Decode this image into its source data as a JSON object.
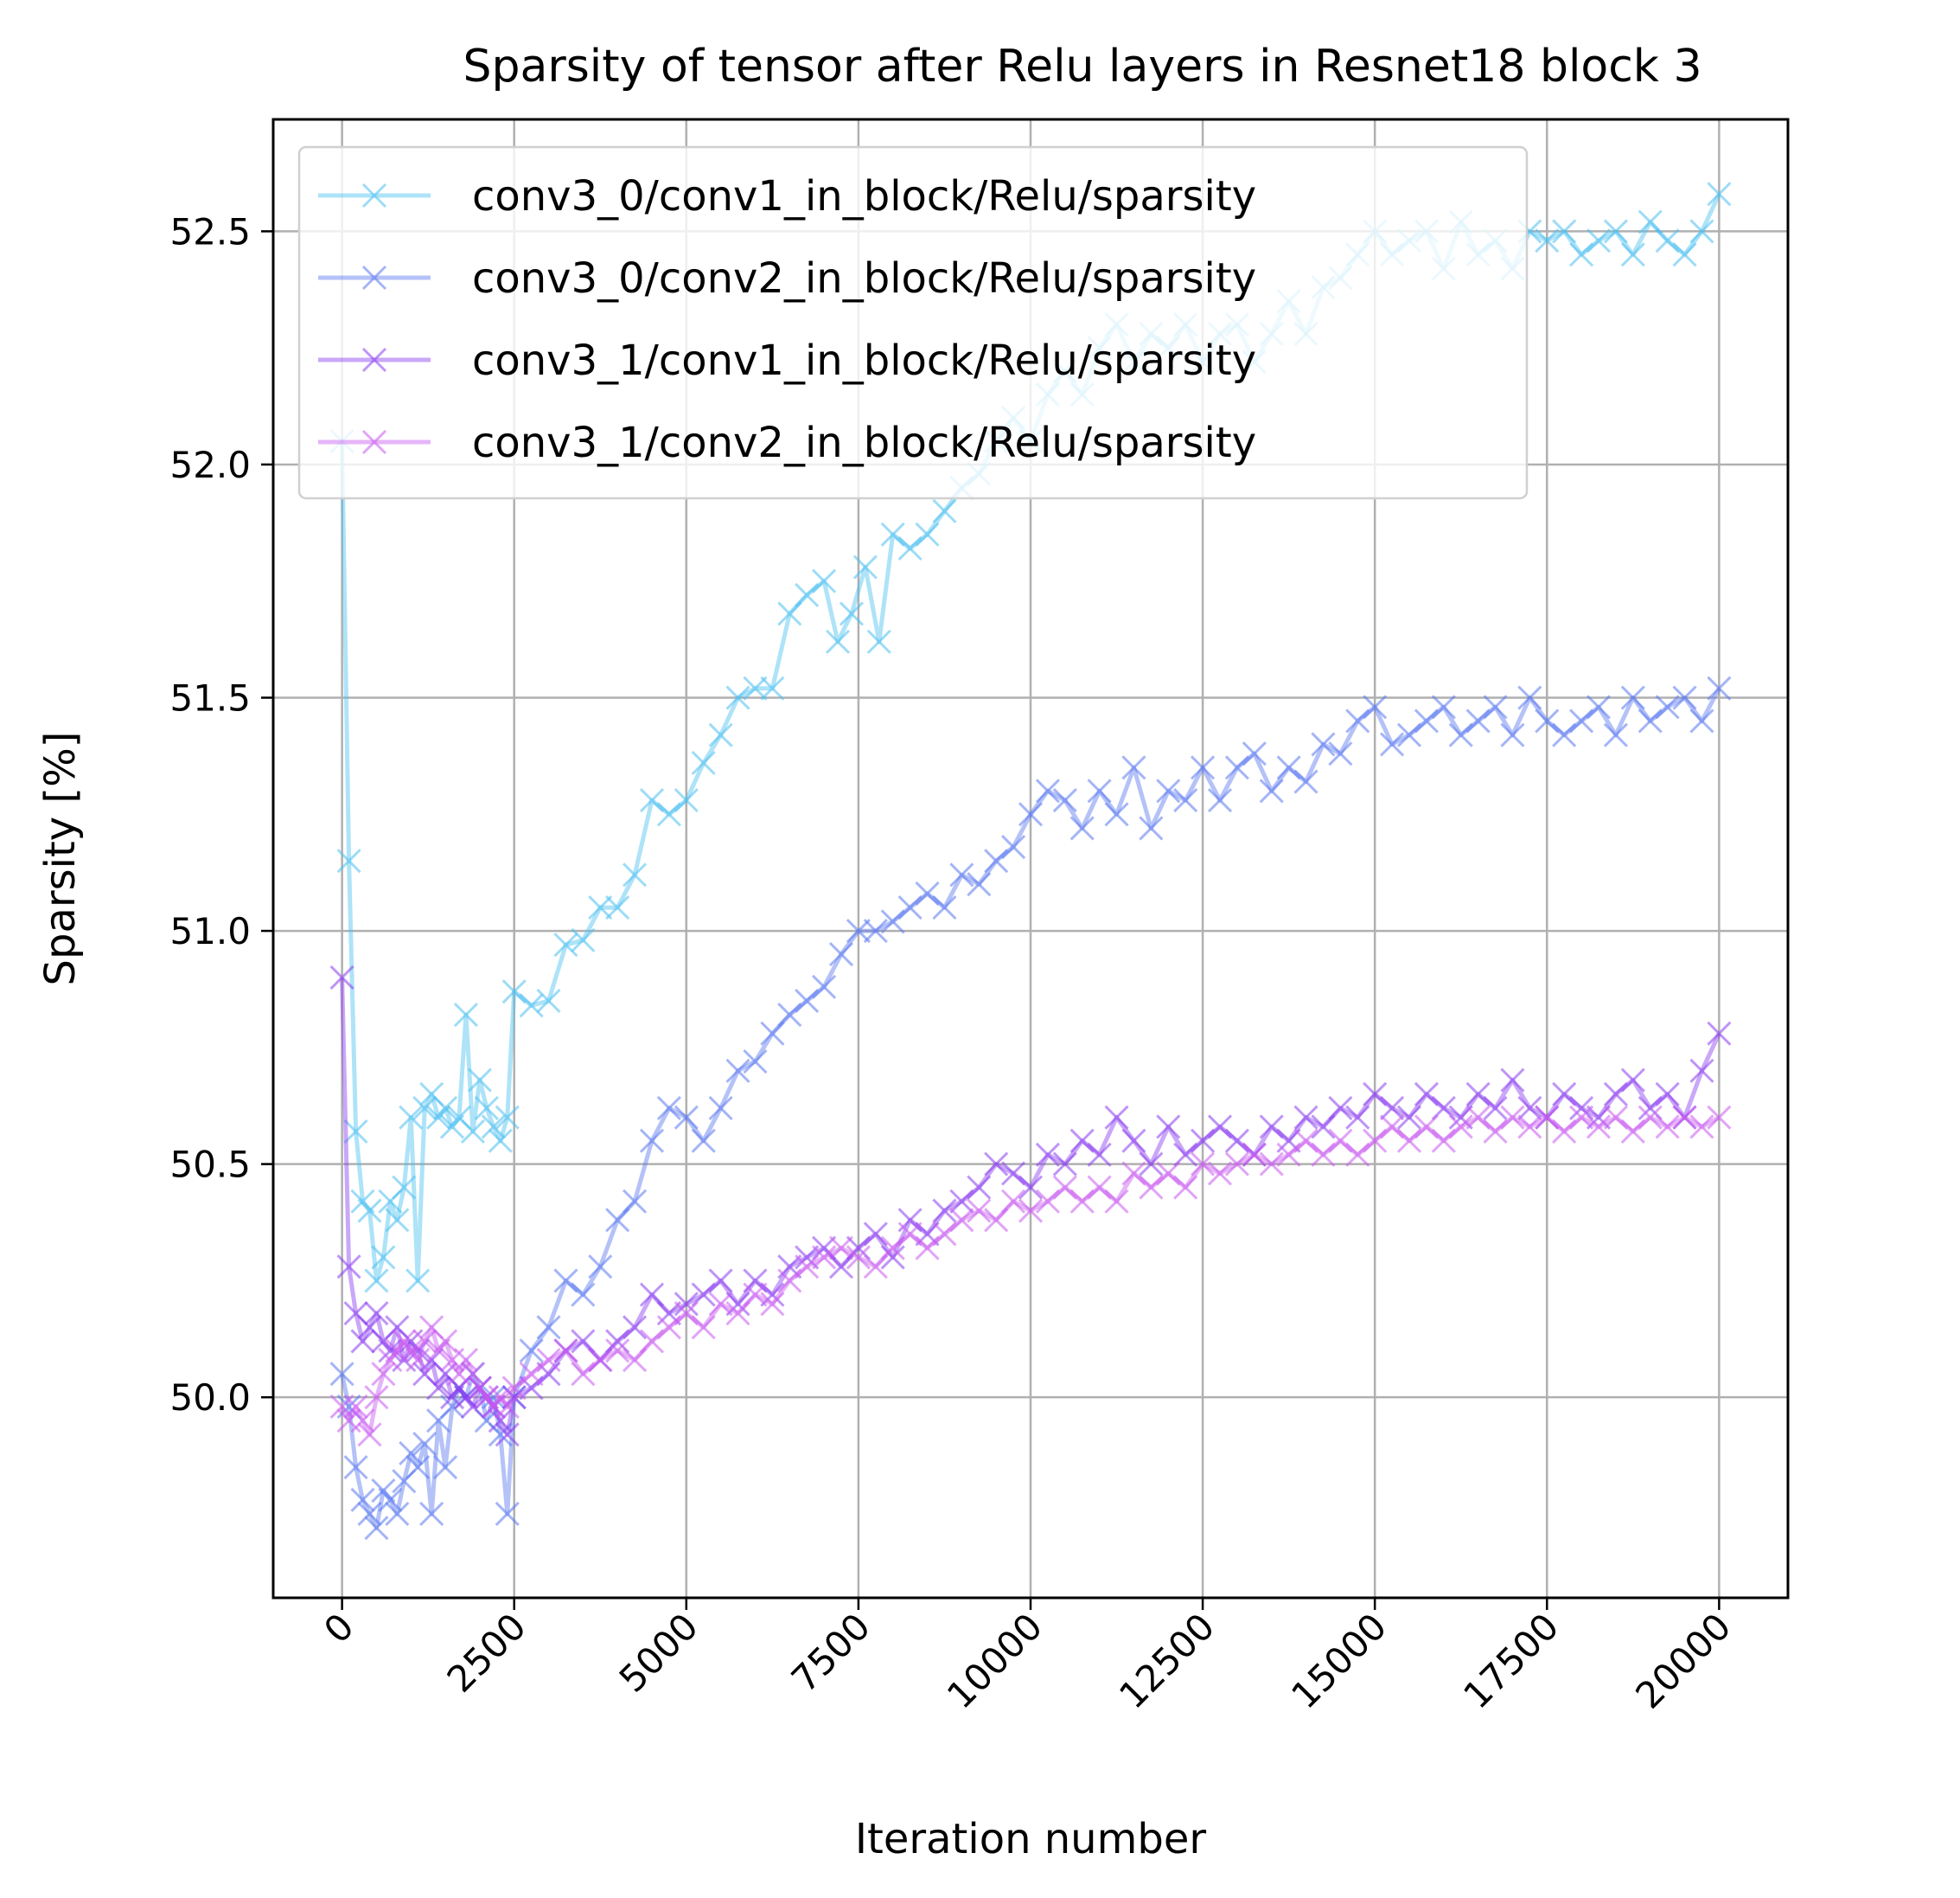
{
  "chart_data": {
    "type": "line",
    "title": "Sparsity of tensor after Relu layers in Resnet18 block 3",
    "xlabel": "Iteration number",
    "ylabel": "Sparsity [%]",
    "xlim": [
      -1000,
      21000
    ],
    "ylim": [
      49.57,
      52.74
    ],
    "xticks": [
      0,
      2500,
      5000,
      7500,
      10000,
      12500,
      15000,
      17500,
      20000
    ],
    "xtick_labels": [
      "0",
      "2500",
      "5000",
      "7500",
      "10000",
      "12500",
      "15000",
      "17500",
      "20000"
    ],
    "yticks": [
      50.0,
      50.5,
      51.0,
      51.5,
      52.0,
      52.5
    ],
    "ytick_labels": [
      "50.0",
      "50.5",
      "51.0",
      "51.5",
      "52.0",
      "52.5"
    ],
    "grid": true,
    "legend_position": "top-left",
    "marker": "x",
    "series": [
      {
        "name": "conv3_0/conv1_in_block/Relu/sparsity",
        "color": "#4cc0f0",
        "x": [
          0,
          100,
          200,
          300,
          400,
          500,
          600,
          700,
          800,
          900,
          1000,
          1100,
          1200,
          1300,
          1400,
          1500,
          1600,
          1700,
          1800,
          1900,
          2000,
          2100,
          2200,
          2300,
          2400,
          2500,
          2750,
          3000,
          3250,
          3500,
          3750,
          4000,
          4250,
          4500,
          4750,
          5000,
          5250,
          5500,
          5750,
          6000,
          6250,
          6500,
          6750,
          7000,
          7200,
          7400,
          7600,
          7800,
          8000,
          8250,
          8500,
          8750,
          9000,
          9250,
          9500,
          9750,
          10000,
          10250,
          10500,
          10750,
          11000,
          11250,
          11500,
          11750,
          12000,
          12250,
          12500,
          12750,
          13000,
          13250,
          13500,
          13750,
          14000,
          14250,
          14500,
          14750,
          15000,
          15250,
          15500,
          15750,
          16000,
          16250,
          16500,
          16750,
          17000,
          17250,
          17500,
          17750,
          18000,
          18250,
          18500,
          18750,
          19000,
          19250,
          19500,
          19750,
          20000
        ],
        "y": [
          52.05,
          51.15,
          50.57,
          50.42,
          50.4,
          50.25,
          50.3,
          50.42,
          50.38,
          50.45,
          50.6,
          50.25,
          50.62,
          50.65,
          50.6,
          50.62,
          50.58,
          50.6,
          50.82,
          50.57,
          50.68,
          50.62,
          50.58,
          50.55,
          50.6,
          50.87,
          50.84,
          50.85,
          50.97,
          50.98,
          51.05,
          51.05,
          51.12,
          51.28,
          51.25,
          51.28,
          51.36,
          51.42,
          51.5,
          51.52,
          51.52,
          51.68,
          51.72,
          51.75,
          51.62,
          51.68,
          51.78,
          51.62,
          51.85,
          51.82,
          51.85,
          51.9,
          51.95,
          51.98,
          52.05,
          52.1,
          52.05,
          52.15,
          52.2,
          52.15,
          52.25,
          52.3,
          52.22,
          52.28,
          52.25,
          52.3,
          52.22,
          52.28,
          52.3,
          52.22,
          52.28,
          52.35,
          52.28,
          52.38,
          52.4,
          52.45,
          52.5,
          52.45,
          52.48,
          52.5,
          52.42,
          52.52,
          52.45,
          52.48,
          52.42,
          52.5,
          52.48,
          52.5,
          52.45,
          52.48,
          52.5,
          52.45,
          52.52,
          52.48,
          52.45,
          52.5,
          52.58
        ]
      },
      {
        "name": "conv3_0/conv2_in_block/Relu/sparsity",
        "color": "#5a78f0",
        "x": [
          0,
          100,
          200,
          300,
          400,
          500,
          600,
          700,
          800,
          900,
          1000,
          1100,
          1200,
          1300,
          1400,
          1500,
          1600,
          1700,
          1800,
          1900,
          2000,
          2100,
          2200,
          2300,
          2400,
          2500,
          2750,
          3000,
          3250,
          3500,
          3750,
          4000,
          4250,
          4500,
          4750,
          5000,
          5250,
          5500,
          5750,
          6000,
          6250,
          6500,
          6750,
          7000,
          7250,
          7500,
          7750,
          8000,
          8250,
          8500,
          8750,
          9000,
          9250,
          9500,
          9750,
          10000,
          10250,
          10500,
          10750,
          11000,
          11250,
          11500,
          11750,
          12000,
          12250,
          12500,
          12750,
          13000,
          13250,
          13500,
          13750,
          14000,
          14250,
          14500,
          14750,
          15000,
          15250,
          15500,
          15750,
          16000,
          16250,
          16500,
          16750,
          17000,
          17250,
          17500,
          17750,
          18000,
          18250,
          18500,
          18750,
          19000,
          19250,
          19500,
          19750,
          20000
        ],
        "y": [
          50.05,
          49.98,
          49.85,
          49.78,
          49.75,
          49.72,
          49.8,
          49.78,
          49.75,
          49.82,
          49.88,
          49.85,
          49.9,
          49.75,
          49.95,
          49.85,
          49.98,
          50.02,
          50.0,
          50.05,
          50.02,
          49.95,
          50.0,
          49.92,
          49.75,
          50.0,
          50.1,
          50.15,
          50.25,
          50.22,
          50.28,
          50.38,
          50.42,
          50.55,
          50.62,
          50.6,
          50.55,
          50.62,
          50.7,
          50.72,
          50.78,
          50.82,
          50.85,
          50.88,
          50.95,
          51.0,
          51.0,
          51.02,
          51.05,
          51.08,
          51.05,
          51.12,
          51.1,
          51.15,
          51.18,
          51.25,
          51.3,
          51.28,
          51.22,
          51.3,
          51.25,
          51.35,
          51.22,
          51.3,
          51.28,
          51.35,
          51.28,
          51.35,
          51.38,
          51.3,
          51.35,
          51.32,
          51.4,
          51.38,
          51.45,
          51.48,
          51.4,
          51.42,
          51.45,
          51.48,
          51.42,
          51.45,
          51.48,
          51.42,
          51.5,
          51.45,
          51.42,
          51.45,
          51.48,
          51.42,
          51.5,
          51.45,
          51.48,
          51.5,
          51.45,
          51.52
        ]
      },
      {
        "name": "conv3_1/conv1_in_block/Relu/sparsity",
        "color": "#8a3cf0",
        "x": [
          0,
          100,
          200,
          300,
          400,
          500,
          600,
          700,
          800,
          900,
          1000,
          1100,
          1200,
          1300,
          1400,
          1500,
          1600,
          1700,
          1800,
          1900,
          2000,
          2100,
          2200,
          2300,
          2400,
          2500,
          2750,
          3000,
          3250,
          3500,
          3750,
          4000,
          4250,
          4500,
          4750,
          5000,
          5250,
          5500,
          5750,
          6000,
          6250,
          6500,
          6750,
          7000,
          7250,
          7500,
          7750,
          8000,
          8250,
          8500,
          8750,
          9000,
          9250,
          9500,
          9750,
          10000,
          10250,
          10500,
          10750,
          11000,
          11250,
          11500,
          11750,
          12000,
          12250,
          12500,
          12750,
          13000,
          13250,
          13500,
          13750,
          14000,
          14250,
          14500,
          14750,
          15000,
          15250,
          15500,
          15750,
          16000,
          16250,
          16500,
          16750,
          17000,
          17250,
          17500,
          17750,
          18000,
          18250,
          18500,
          18750,
          19000,
          19250,
          19500,
          19750,
          20000
        ],
        "y": [
          50.9,
          50.28,
          50.18,
          50.12,
          50.15,
          50.18,
          50.12,
          50.1,
          50.15,
          50.08,
          50.12,
          50.1,
          50.05,
          50.08,
          50.02,
          50.05,
          50.0,
          50.02,
          50.0,
          49.98,
          50.02,
          50.0,
          49.98,
          49.95,
          49.92,
          50.0,
          50.02,
          50.05,
          50.1,
          50.12,
          50.08,
          50.12,
          50.15,
          50.22,
          50.18,
          50.2,
          50.22,
          50.25,
          50.2,
          50.25,
          50.22,
          50.28,
          50.3,
          50.32,
          50.28,
          50.32,
          50.35,
          50.3,
          50.38,
          50.35,
          50.4,
          50.42,
          50.45,
          50.5,
          50.48,
          50.45,
          50.52,
          50.5,
          50.55,
          50.52,
          50.6,
          50.55,
          50.5,
          50.58,
          50.52,
          50.55,
          50.58,
          50.55,
          50.52,
          50.58,
          50.55,
          50.6,
          50.58,
          50.62,
          50.6,
          50.65,
          50.62,
          50.6,
          50.65,
          50.62,
          50.6,
          50.65,
          50.62,
          50.68,
          50.62,
          50.6,
          50.65,
          50.62,
          50.6,
          50.65,
          50.68,
          50.62,
          50.65,
          50.6,
          50.7,
          50.78
        ]
      },
      {
        "name": "conv3_1/conv2_in_block/Relu/sparsity",
        "color": "#c85af0",
        "x": [
          0,
          100,
          200,
          300,
          400,
          500,
          600,
          700,
          800,
          900,
          1000,
          1100,
          1200,
          1300,
          1400,
          1500,
          1600,
          1700,
          1800,
          1900,
          2000,
          2100,
          2200,
          2300,
          2400,
          2500,
          2750,
          3000,
          3250,
          3500,
          3750,
          4000,
          4250,
          4500,
          4750,
          5000,
          5250,
          5500,
          5750,
          6000,
          6250,
          6500,
          6750,
          7000,
          7250,
          7500,
          7750,
          8000,
          8250,
          8500,
          8750,
          9000,
          9250,
          9500,
          9750,
          10000,
          10250,
          10500,
          10750,
          11000,
          11250,
          11500,
          11750,
          12000,
          12250,
          12500,
          12750,
          13000,
          13250,
          13500,
          13750,
          14000,
          14250,
          14500,
          14750,
          15000,
          15250,
          15500,
          15750,
          16000,
          16250,
          16500,
          16750,
          17000,
          17250,
          17500,
          17750,
          18000,
          18250,
          18500,
          18750,
          19000,
          19250,
          19500,
          19750,
          20000
        ],
        "y": [
          49.98,
          49.95,
          49.98,
          49.95,
          49.92,
          50.0,
          50.05,
          50.08,
          50.1,
          50.12,
          50.1,
          50.08,
          50.12,
          50.15,
          50.1,
          50.12,
          50.08,
          50.05,
          50.08,
          50.05,
          50.02,
          50.0,
          49.98,
          50.0,
          49.98,
          50.02,
          50.05,
          50.08,
          50.1,
          50.05,
          50.08,
          50.1,
          50.08,
          50.12,
          50.15,
          50.18,
          50.15,
          50.2,
          50.18,
          50.22,
          50.2,
          50.25,
          50.28,
          50.3,
          50.32,
          50.3,
          50.28,
          50.32,
          50.35,
          50.32,
          50.35,
          50.38,
          50.4,
          50.38,
          50.42,
          50.4,
          50.42,
          50.45,
          50.42,
          50.45,
          50.42,
          50.48,
          50.45,
          50.48,
          50.45,
          50.5,
          50.48,
          50.5,
          50.52,
          50.5,
          50.52,
          50.55,
          50.52,
          50.55,
          50.52,
          50.55,
          50.58,
          50.55,
          50.58,
          50.55,
          50.58,
          50.6,
          50.57,
          50.6,
          50.58,
          50.6,
          50.57,
          50.6,
          50.58,
          50.6,
          50.57,
          50.6,
          50.58,
          50.6,
          50.58,
          50.6
        ]
      }
    ]
  }
}
